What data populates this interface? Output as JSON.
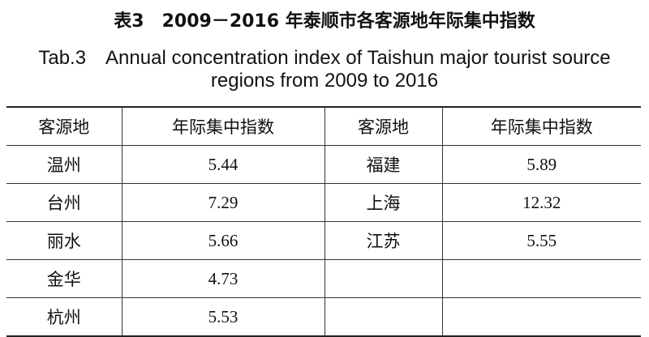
{
  "title_zh": "表3　2009－2016 年泰顺市各客源地年际集中指数",
  "title_en": [
    "Tab.3　Annual concentration index of Taishun major tourist source",
    "regions from 2009 to 2016"
  ],
  "table": {
    "headers": [
      "客源地",
      "年际集中指数",
      "客源地",
      "年际集中指数"
    ],
    "left_rows": [
      [
        "温州",
        5.44
      ],
      [
        "台州",
        7.29
      ],
      [
        "丽水",
        5.66
      ],
      [
        "金华",
        4.73
      ],
      [
        "杭州",
        5.53
      ]
    ],
    "right_rows": [
      [
        "福建",
        5.89
      ],
      [
        "上海",
        12.32
      ],
      [
        "江苏",
        5.55
      ]
    ]
  }
}
